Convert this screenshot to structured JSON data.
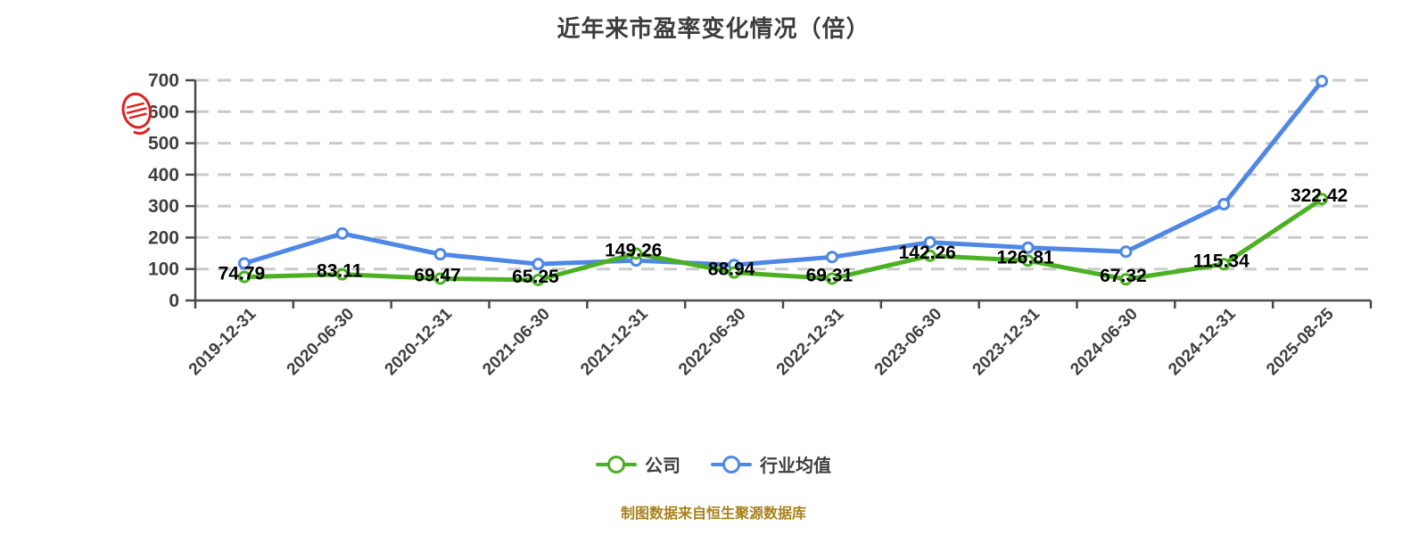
{
  "title": "近年来市盈率变化情况（倍）",
  "caption": "制图数据来自恒生聚源数据库",
  "legend": {
    "items": [
      {
        "label": "公司",
        "color": "#4cb122"
      },
      {
        "label": "行业均值",
        "color": "#4e87e5"
      }
    ]
  },
  "watermark": {
    "name": "red-seal",
    "color": "#dd2222"
  },
  "chart_data": {
    "type": "line",
    "title": "近年来市盈率变化情况（倍）",
    "categories": [
      "2019-12-31",
      "2020-06-30",
      "2020-12-31",
      "2021-06-30",
      "2021-12-31",
      "2022-06-30",
      "2022-12-31",
      "2023-06-30",
      "2023-12-31",
      "2024-06-30",
      "2024-12-31",
      "2025-08-25"
    ],
    "series": [
      {
        "id": "industry-average",
        "name": "行业均值",
        "color": "#4e87e5",
        "values": [
          118,
          213,
          147,
          116,
          127,
          113,
          138,
          185,
          168,
          155,
          306,
          697
        ],
        "labels_visible": false
      },
      {
        "id": "company",
        "name": "公司",
        "color": "#4cb122",
        "values": [
          74.79,
          83.11,
          69.47,
          65.25,
          149.26,
          88.94,
          69.31,
          142.26,
          126.81,
          67.32,
          115.34,
          322.42
        ],
        "labels_visible": true
      }
    ],
    "legend_order": [
      "公司",
      "行业均值"
    ],
    "ylim": [
      0,
      700
    ],
    "ytick_step": 100,
    "grid": "dashed-horizontal",
    "legend_position": "bottom",
    "x_tick_rotation": 45,
    "colors": {
      "axis": "#4a4a4a",
      "grid": "#cbcbcb",
      "tick_label": "#3f3f3f",
      "value_label": "#000000"
    }
  }
}
